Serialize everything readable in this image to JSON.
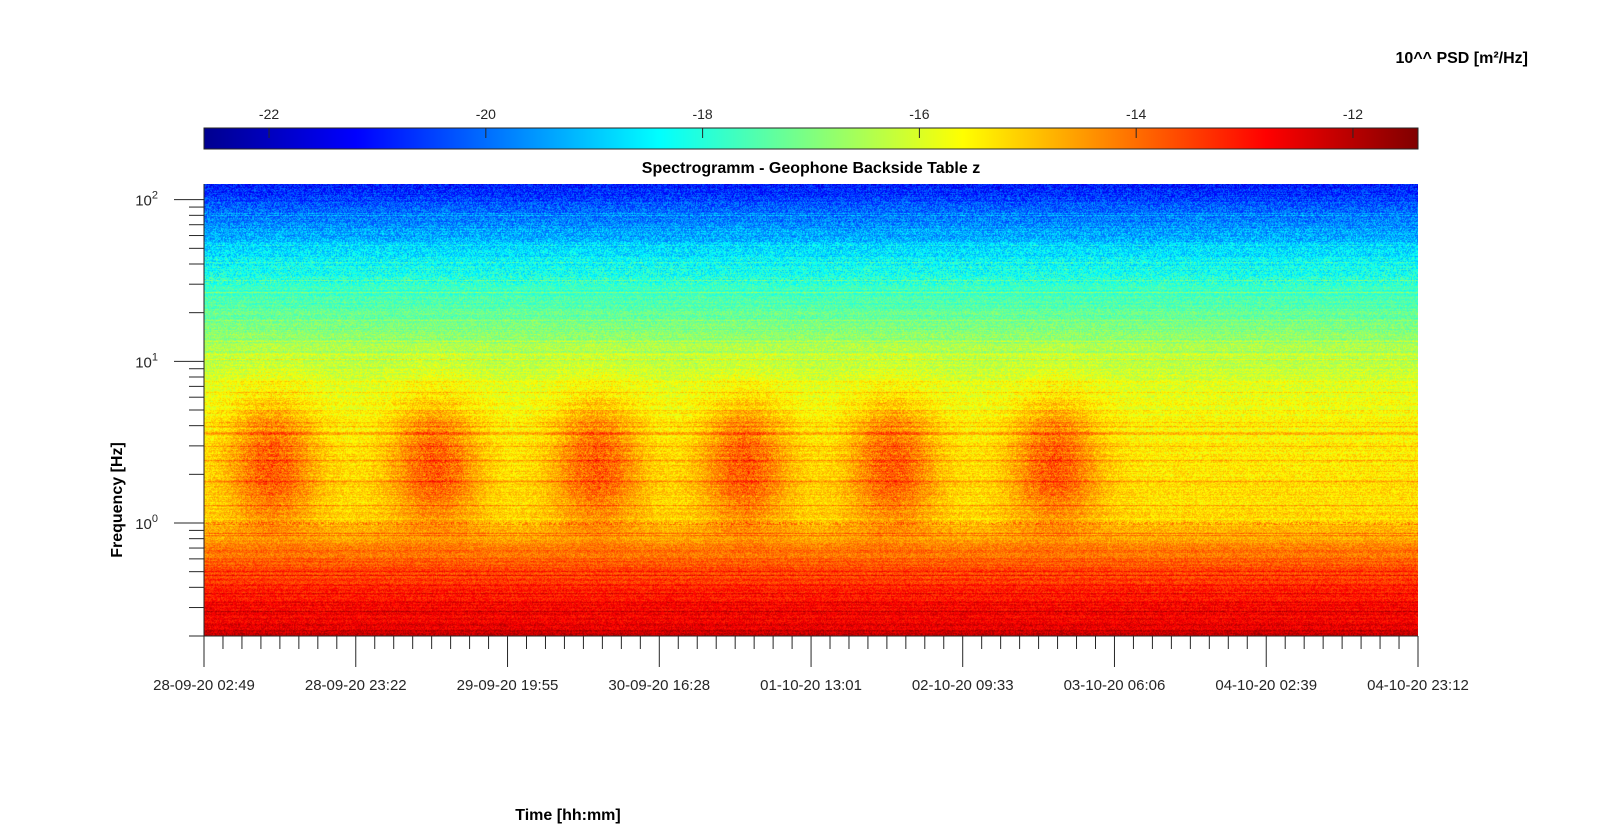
{
  "chart_data": {
    "type": "heatmap",
    "title": "Spectrogramm - Geophone Backside Table z",
    "xlabel": "Time [hh:mm]",
    "ylabel": "Frequency [Hz]",
    "colorbar_label": "10^^ PSD [m²/Hz]",
    "colormap": "jet",
    "colorbar_range": [
      -22.6,
      -11.4
    ],
    "colorbar_ticks": [
      -22,
      -20,
      -18,
      -16,
      -14,
      -12
    ],
    "y_scale": "log",
    "ylim": [
      0.2,
      125
    ],
    "y_ticks": [
      {
        "base": "10",
        "exp": "2",
        "value": 100
      },
      {
        "base": "10",
        "exp": "1",
        "value": 10
      },
      {
        "base": "10",
        "exp": "0",
        "value": 1
      }
    ],
    "x_ticks": [
      "28-09-20 02:49",
      "28-09-20 23:22",
      "29-09-20 19:55",
      "30-09-20 16:28",
      "01-10-20 13:01",
      "02-10-20 09:33",
      "03-10-20 06:06",
      "04-10-20 02:39",
      "04-10-20 23:12"
    ],
    "xlim": [
      "28-09-20 02:49",
      "04-10-20 23:12"
    ],
    "daytime_activity_bursts": [
      {
        "center": "28-09-20 12:00",
        "freq_range_hz": [
          1,
          5
        ],
        "psd_log10": -13.5
      },
      {
        "center": "29-09-20 10:00",
        "freq_range_hz": [
          1,
          5
        ],
        "psd_log10": -13.5
      },
      {
        "center": "30-09-20 08:00",
        "freq_range_hz": [
          1,
          5
        ],
        "psd_log10": -13.5
      },
      {
        "center": "01-10-20 04:00",
        "freq_range_hz": [
          1,
          5
        ],
        "psd_log10": -13.5
      },
      {
        "center": "02-10-20 00:00",
        "freq_range_hz": [
          1,
          5
        ],
        "psd_log10": -13.5
      },
      {
        "center": "02-10-20 22:00",
        "freq_range_hz": [
          1,
          5
        ],
        "psd_log10": -13.5
      }
    ],
    "background_psd_log10": [
      {
        "freq_hz": 125,
        "psd": -21.0
      },
      {
        "freq_hz": 70,
        "psd": -19.6
      },
      {
        "freq_hz": 40,
        "psd": -18.3
      },
      {
        "freq_hz": 20,
        "psd": -17.3
      },
      {
        "freq_hz": 8,
        "psd": -16.0
      },
      {
        "freq_hz": 3,
        "psd": -15.4
      },
      {
        "freq_hz": 1,
        "psd": -15.2
      },
      {
        "freq_hz": 0.7,
        "psd": -14.1
      },
      {
        "freq_hz": 0.4,
        "psd": -13.2
      },
      {
        "freq_hz": 0.2,
        "psd": -12.3
      }
    ]
  }
}
